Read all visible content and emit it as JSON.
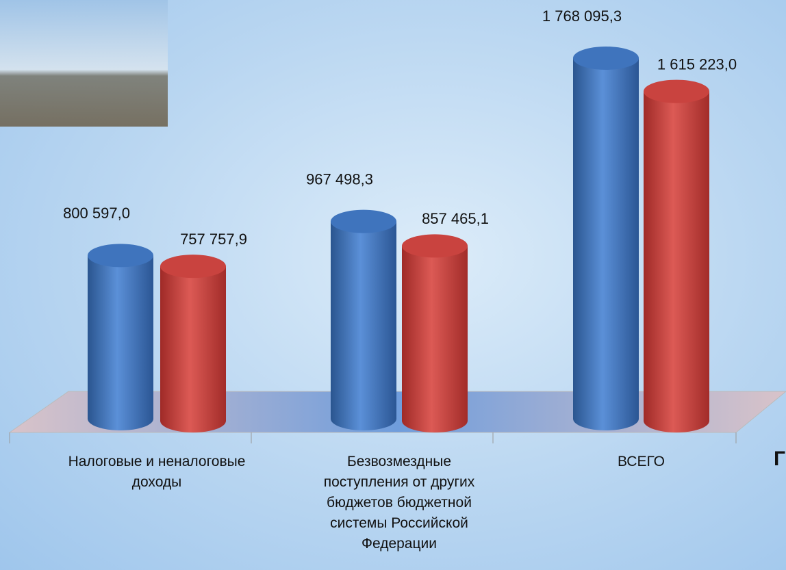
{
  "chart_data": {
    "type": "cylinder-bar",
    "categories": [
      "Налоговые и неналоговые доходы",
      "Безвозмездные поступления от других бюджетов бюджетной системы Российской Федерации",
      "ВСЕГО"
    ],
    "series": [
      {
        "color": "#3f74bd",
        "values": [
          800597.0,
          967498.3,
          1768095.3
        ],
        "value_labels": [
          "800 597,0",
          "967 498,3",
          "1 768 095,3"
        ]
      },
      {
        "color": "#c9433f",
        "values": [
          757757.9,
          857465.1,
          1615223.0
        ],
        "value_labels": [
          "757 757,9",
          "857 465,1",
          "1 615 223,0"
        ]
      }
    ],
    "annotations": [
      "Г"
    ]
  }
}
